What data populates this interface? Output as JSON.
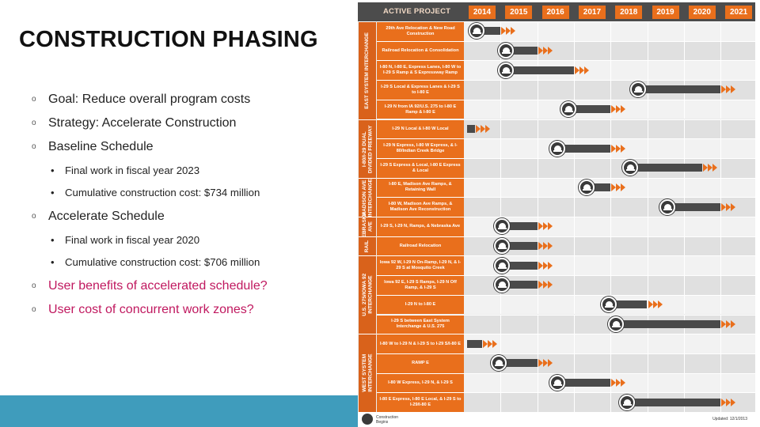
{
  "title": "CONSTRUCTION PHASING",
  "bullets": {
    "goal": "Goal: Reduce overall program costs",
    "strategy": "Strategy: Accelerate Construction",
    "baseline": "Baseline Schedule",
    "baseline_final": "Final work in fiscal year 2023",
    "baseline_cost": "Cumulative construction cost: $734 million",
    "accelerate": "Accelerate Schedule",
    "accel_final": "Final work in fiscal year 2020",
    "accel_cost": "Cumulative construction cost: $706 million",
    "benefits": "User benefits of accelerated schedule?",
    "zones": "User cost of concurrent work zones?"
  },
  "marks": {
    "outer": "o",
    "inner": "•"
  },
  "colors": {
    "accent_orange": "#e96f1c",
    "dark_bar": "#4a4a4a",
    "pink_text": "#c0185f",
    "footer_blue": "#3f9cbc"
  },
  "schedule": {
    "header": "ACTIVE PROJECT",
    "years": [
      "2014",
      "2015",
      "2016",
      "2017",
      "2018",
      "2019",
      "2020",
      "2021"
    ],
    "sections": [
      {
        "label": "EAST SYSTEM INTERCHANGE",
        "rows": 5
      },
      {
        "label": "I-80/I-29 DUAL DIVIDED FREEWAY",
        "rows": 3
      },
      {
        "label": "MADISON AVE INTERCHANGE",
        "rows": 2
      },
      {
        "label": "NEBRASKA AVE",
        "rows": 1
      },
      {
        "label": "RAIL",
        "rows": 1
      },
      {
        "label": "U.S. 275/IOWA 92 INTERCHANGE",
        "rows": 4
      },
      {
        "label": "WEST SYSTEM INTERCHANGE",
        "rows": 4
      }
    ],
    "rows": [
      {
        "label": "29th Ave Relocation & New Road Construction",
        "start": 2014.3,
        "end": 2015.0
      },
      {
        "label": "Railroad Relocation & Consolidation",
        "start": 2015.1,
        "end": 2016.0
      },
      {
        "label": "I-80 N, I-80 E, Express Lanes, I-80 W to I-29 S Ramp & S Expressway Ramp",
        "start": 2015.1,
        "end": 2017.0
      },
      {
        "label": "I-29 S Local & Express Lanes & I-29 S to I-80 E",
        "start": 2018.7,
        "end": 2021.0
      },
      {
        "label": "I-29 N from IA 92/U.S. 275 to I-80 E Ramp & I-80 E",
        "start": 2016.8,
        "end": 2018.0
      },
      {
        "label": "I-29 N Local & I-80 W Local",
        "start": 2014.0,
        "end": 2014.3
      },
      {
        "label": "I-29 N Express, I-80 W Express, & I-80/Indian Creek Bridge",
        "start": 2016.5,
        "end": 2018.0
      },
      {
        "label": "I-29 S Express & Local, I-80 E Express & Local",
        "start": 2018.5,
        "end": 2020.5
      },
      {
        "label": "I-80 E, Madison Ave Ramps, & Retaining Wall",
        "start": 2017.3,
        "end": 2018.0
      },
      {
        "label": "I-80 W, Madison Ave Ramps, & Madison Ave Reconstruction",
        "start": 2019.5,
        "end": 2021.0
      },
      {
        "label": "I-29 S, I-29 N, Ramps, & Nebraska Ave",
        "start": 2015.0,
        "end": 2016.0
      },
      {
        "label": "Railroad Relocation",
        "start": 2015.0,
        "end": 2016.0
      },
      {
        "label": "Iowa 92 W, I-29 N On-Ramp, I-29 N, & I-29 S at Mosquito Creek",
        "start": 2015.0,
        "end": 2016.0
      },
      {
        "label": "Iowa 92 E, I-29 S Ramps, I-29 N Off Ramp, & I-29 S",
        "start": 2015.0,
        "end": 2016.0
      },
      {
        "label": "I-29 N to I-80 E",
        "start": 2017.9,
        "end": 2019.0
      },
      {
        "label": "I-29 S between East System Interchange & U.S. 275",
        "start": 2018.1,
        "end": 2021.0
      },
      {
        "label": "I-80 W to I-29 N & I-29 S to I-29 S/I-80 E",
        "start": 2014.0,
        "end": 2014.5
      },
      {
        "label": "RAMP E",
        "start": 2014.9,
        "end": 2016.0
      },
      {
        "label": "I-80 W Express, I-29 N, & I-29 S",
        "start": 2016.5,
        "end": 2018.0
      },
      {
        "label": "I-80 E Express, I-80 E Local, & I-29 S to I-29/I-80 E",
        "start": 2018.4,
        "end": 2021.0
      }
    ],
    "legend": "Construction Begins",
    "updated": "Updated: 12/1/2013"
  }
}
